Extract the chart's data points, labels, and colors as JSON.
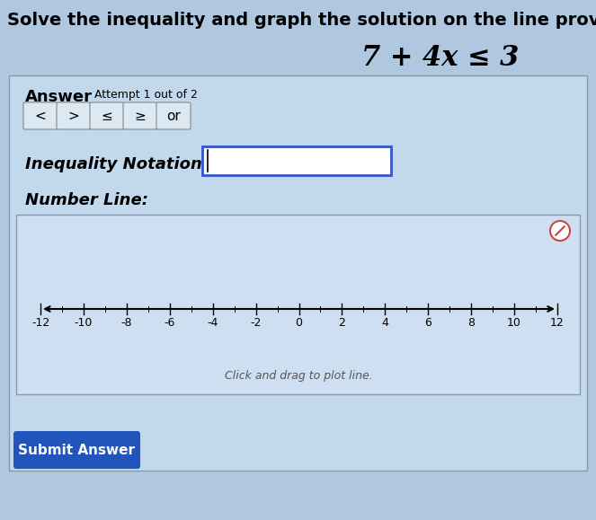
{
  "title": "Solve the inequality and graph the solution on the line provided.",
  "equation": "7 + 4x ≤ 3",
  "answer_label": "Answer",
  "attempt_label": "Attempt 1 out of 2",
  "buttons": [
    "<",
    ">",
    "≤",
    "≥",
    "or"
  ],
  "inequality_label": "Inequality Notation:",
  "number_line_label": "Number Line:",
  "number_line_ticks": [
    -12,
    -10,
    -8,
    -6,
    -4,
    -2,
    0,
    2,
    4,
    6,
    8,
    10,
    12
  ],
  "click_drag_text": "Click and drag to plot line.",
  "submit_button": "Submit Answer",
  "bg_color": "#afc8e0",
  "panel_bg": "#c2d8ec",
  "number_line_bg": "#cddff0",
  "button_bg": "#dce8f2",
  "button_border": "#888888",
  "input_box_border": "#3355cc",
  "submit_btn_color": "#2255bb",
  "title_fontsize": 14,
  "equation_fontsize": 22,
  "label_fontsize": 13,
  "small_fontsize": 9,
  "tick_fontsize": 9
}
